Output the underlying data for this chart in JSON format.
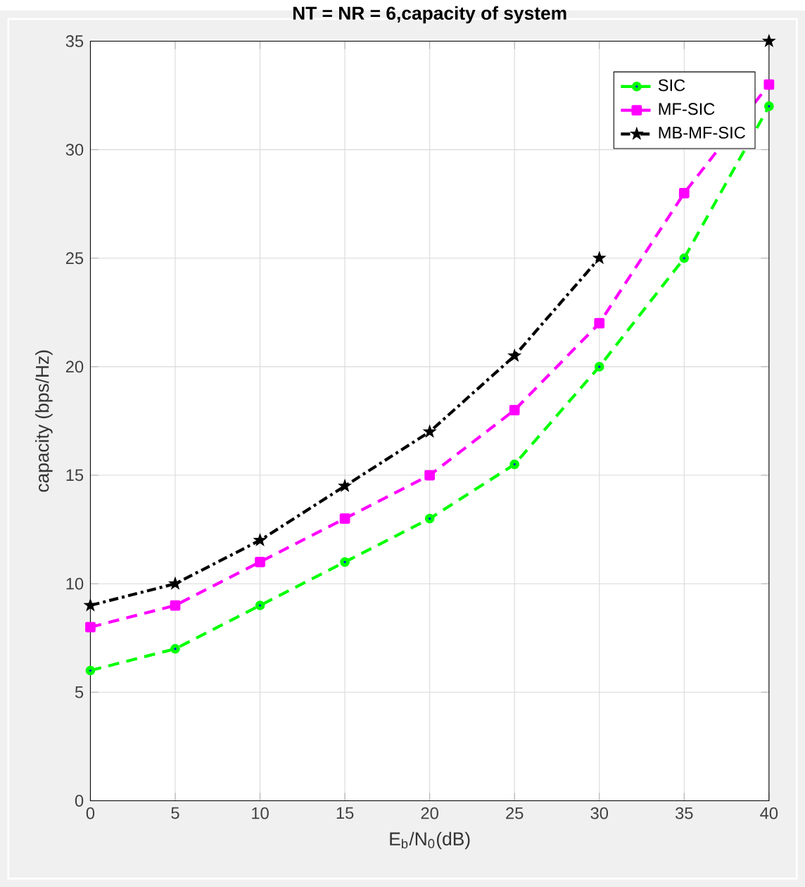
{
  "chart_data": {
    "type": "line",
    "title": "NT = NR = 6,capacity of system",
    "xlabel": "E$_{b}$/N$_{0}$(dB)",
    "ylabel": "capacity (bps/Hz)",
    "x": [
      0,
      5,
      10,
      15,
      20,
      25,
      30,
      35,
      40
    ],
    "series": [
      {
        "name": "SIC",
        "color": "#00ff00",
        "marker": "circle",
        "line_style": "dashed",
        "values": [
          6,
          7,
          9,
          11,
          13,
          15.5,
          20,
          25,
          32
        ]
      },
      {
        "name": "MF-SIC",
        "color": "#ff00ff",
        "marker": "square",
        "line_style": "dashed",
        "values": [
          8,
          9,
          11,
          13,
          15,
          18,
          22,
          28,
          33
        ]
      },
      {
        "name": "MB-MF-SIC",
        "color": "#000000",
        "marker": "star",
        "line_style": "dashdot",
        "values": [
          9,
          10,
          12,
          14.5,
          17,
          20.5,
          25,
          null,
          35
        ]
      }
    ],
    "xlim": [
      0,
      40
    ],
    "ylim": [
      0,
      35
    ],
    "xticks": [
      0,
      5,
      10,
      15,
      20,
      25,
      30,
      35,
      40
    ],
    "yticks": [
      0,
      5,
      10,
      15,
      20,
      25,
      30,
      35
    ],
    "grid": true,
    "legend": "top right"
  }
}
